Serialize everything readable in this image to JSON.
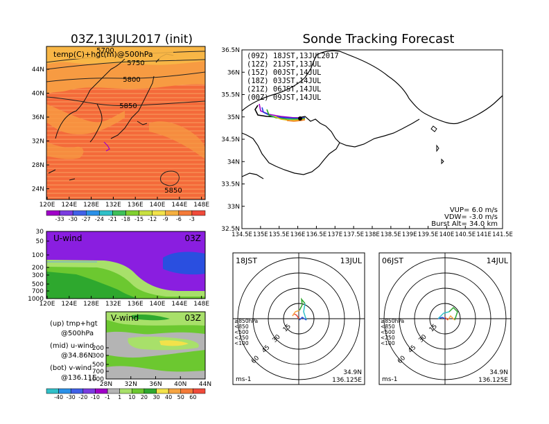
{
  "colors": {
    "temp_warm": "#f46a3a",
    "temp_mid": "#f79b42",
    "temp_cool": "#f8b646",
    "u_purple": "#8a1ee0",
    "u_blue": "#2a4fe0",
    "green_light": "#a8e06a",
    "green_mid": "#6cc830",
    "green_dark": "#2ea82e",
    "gray": "#b4b4b4",
    "yellow": "#f2e24a",
    "orange": "#f5a442",
    "track_09": "#000000",
    "track_12": "#a000c8",
    "track_15": "#2040e0",
    "track_18": "#20b020",
    "track_21": "#e0c020",
    "track_00": "#f08020"
  },
  "temp_map": {
    "title": "03Z,13JUL2017 (init)",
    "label": "temp(C)+hgt(m)@500hPa",
    "lon_ticks": [
      "120E",
      "124E",
      "128E",
      "132E",
      "136E",
      "140E",
      "144E",
      "148E"
    ],
    "lat_ticks": [
      "44N",
      "40N",
      "36N",
      "32N",
      "28N",
      "24N"
    ],
    "contours": [
      "5700",
      "5750",
      "5800",
      "5850",
      "5850"
    ],
    "colorbar_ticks": [
      "-33",
      "-30",
      "-27",
      "-24",
      "-21",
      "-18",
      "-15",
      "-12",
      "-9",
      "-6",
      "-3"
    ]
  },
  "uwind": {
    "label": "U-wind",
    "time": "03Z",
    "p_ticks": [
      "30",
      "50",
      "100",
      "200",
      "300",
      "500",
      "700",
      "1000"
    ],
    "lon_ticks": [
      "120E",
      "124E",
      "128E",
      "132E",
      "136E",
      "140E",
      "144E",
      "148E"
    ]
  },
  "vwind": {
    "label": "V-wind",
    "time": "03Z",
    "p_ticks": [
      "30",
      "50",
      "100",
      "200",
      "300",
      "500",
      "700",
      "1000"
    ],
    "lat_ticks": [
      "28N",
      "32N",
      "36N",
      "40N",
      "44N"
    ],
    "colorbar_ticks": [
      "-40",
      "-30",
      "-20",
      "-10",
      "-1",
      "1",
      "10",
      "20",
      "30",
      "40",
      "50",
      "60"
    ]
  },
  "notes": {
    "up": "(up) tmp+hgt",
    "up2": "@500hPa",
    "mid": "(mid) u-wind",
    "mid2": "@34.86N",
    "bot": "(bot) v-wind",
    "bot2": "@136.11E"
  },
  "tracking": {
    "title": "Sonde Tracking Forecast",
    "lat_ticks": [
      "36.5N",
      "36N",
      "35.5N",
      "35N",
      "34.5N",
      "34N",
      "33.5N",
      "33N",
      "32.5N"
    ],
    "lon_ticks": [
      "134.5E",
      "135E",
      "135.5E",
      "136E",
      "136.5E",
      "137E",
      "137.5E",
      "138E",
      "138.5E",
      "139E",
      "139.5E",
      "140E",
      "140.5E",
      "141E",
      "141.5E"
    ],
    "legend": [
      {
        "text": "(09Z)  18JST,13JUL2017"
      },
      {
        "text": "(12Z)  21JST,13JUL"
      },
      {
        "text": "(15Z)  00JST,14JUL"
      },
      {
        "text": "(18Z)  03JST,14JUL"
      },
      {
        "text": "(21Z)  06JST,14JUL"
      },
      {
        "text": "(00Z)  09JST,14JUL"
      }
    ],
    "params": [
      "VUP=  6.0  m/s",
      "VDW= -3.0  m/s",
      "Burst Alt=  34.0  km"
    ]
  },
  "hodo_left": {
    "time": "18JST",
    "date": "13JUL",
    "rings": [
      "15",
      "30",
      "45",
      "60"
    ],
    "levels": [
      "≥850hPa",
      "<850",
      "<500",
      "<250",
      "<100"
    ],
    "unit": "ms-1",
    "lat": "34.9N",
    "lon": "136.125E"
  },
  "hodo_right": {
    "time": "06JST",
    "date": "14JUL",
    "rings": [
      "15",
      "30",
      "45",
      "60"
    ],
    "levels": [
      "≥850hPa",
      "<850",
      "<500",
      "<250",
      "<100"
    ],
    "unit": "ms-1",
    "lat": "34.9N",
    "lon": "136.125E"
  }
}
